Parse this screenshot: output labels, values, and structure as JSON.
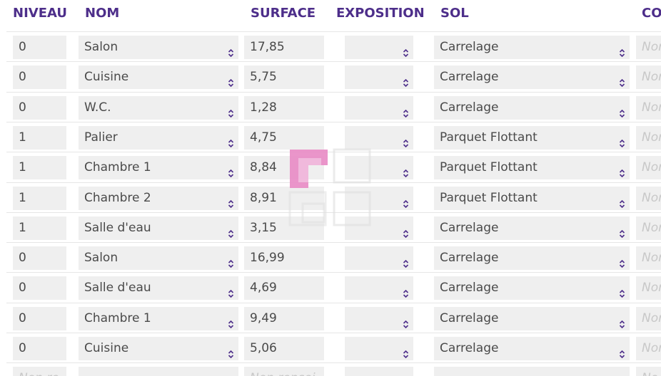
{
  "headers": {
    "niveau": "NIVEAU",
    "nom": "NOM",
    "surface": "SURFACE",
    "exposition": "EXPOSITION",
    "sol": "SOL",
    "co": "CO"
  },
  "rows": [
    {
      "niveau": "0",
      "nom": "Salon",
      "surface": "17,85",
      "exposition": "",
      "sol": "Carrelage",
      "co": "Non"
    },
    {
      "niveau": "0",
      "nom": "Cuisine",
      "surface": "5,75",
      "exposition": "",
      "sol": "Carrelage",
      "co": "Non"
    },
    {
      "niveau": "0",
      "nom": "W.C.",
      "surface": "1,28",
      "exposition": "",
      "sol": "Carrelage",
      "co": "Non"
    },
    {
      "niveau": "1",
      "nom": "Palier",
      "surface": "4,75",
      "exposition": "",
      "sol": "Parquet Flottant",
      "co": "Non"
    },
    {
      "niveau": "1",
      "nom": "Chambre 1",
      "surface": "8,84",
      "exposition": "",
      "sol": "Parquet Flottant",
      "co": "Non"
    },
    {
      "niveau": "1",
      "nom": "Chambre 2",
      "surface": "8,91",
      "exposition": "",
      "sol": "Parquet Flottant",
      "co": "Non"
    },
    {
      "niveau": "1",
      "nom": "Salle d'eau",
      "surface": "3,15",
      "exposition": "",
      "sol": "Carrelage",
      "co": "Non"
    },
    {
      "niveau": "0",
      "nom": "Salon",
      "surface": "16,99",
      "exposition": "",
      "sol": "Carrelage",
      "co": "Non"
    },
    {
      "niveau": "0",
      "nom": "Salle d'eau",
      "surface": "4,69",
      "exposition": "",
      "sol": "Carrelage",
      "co": "Non"
    },
    {
      "niveau": "0",
      "nom": "Chambre 1",
      "surface": "9,49",
      "exposition": "",
      "sol": "Carrelage",
      "co": "Non"
    },
    {
      "niveau": "0",
      "nom": "Cuisine",
      "surface": "5,06",
      "exposition": "",
      "sol": "Carrelage",
      "co": "Non"
    },
    {
      "niveau": "Non re",
      "nom": "",
      "surface": "Non rensei",
      "exposition": "",
      "sol": "",
      "co": "No",
      "placeholder": true
    }
  ],
  "colors": {
    "header_text": "#4d2e8a",
    "cell_bg": "#efefef",
    "cell_text": "#4a4a4a",
    "placeholder": "#c8c8c8",
    "chevron": "#4d2e8a",
    "watermark": "#e06bb0"
  },
  "icons": {
    "select_arrow": "chevron-up-down-icon",
    "watermark": "corner-brackets-logo"
  }
}
